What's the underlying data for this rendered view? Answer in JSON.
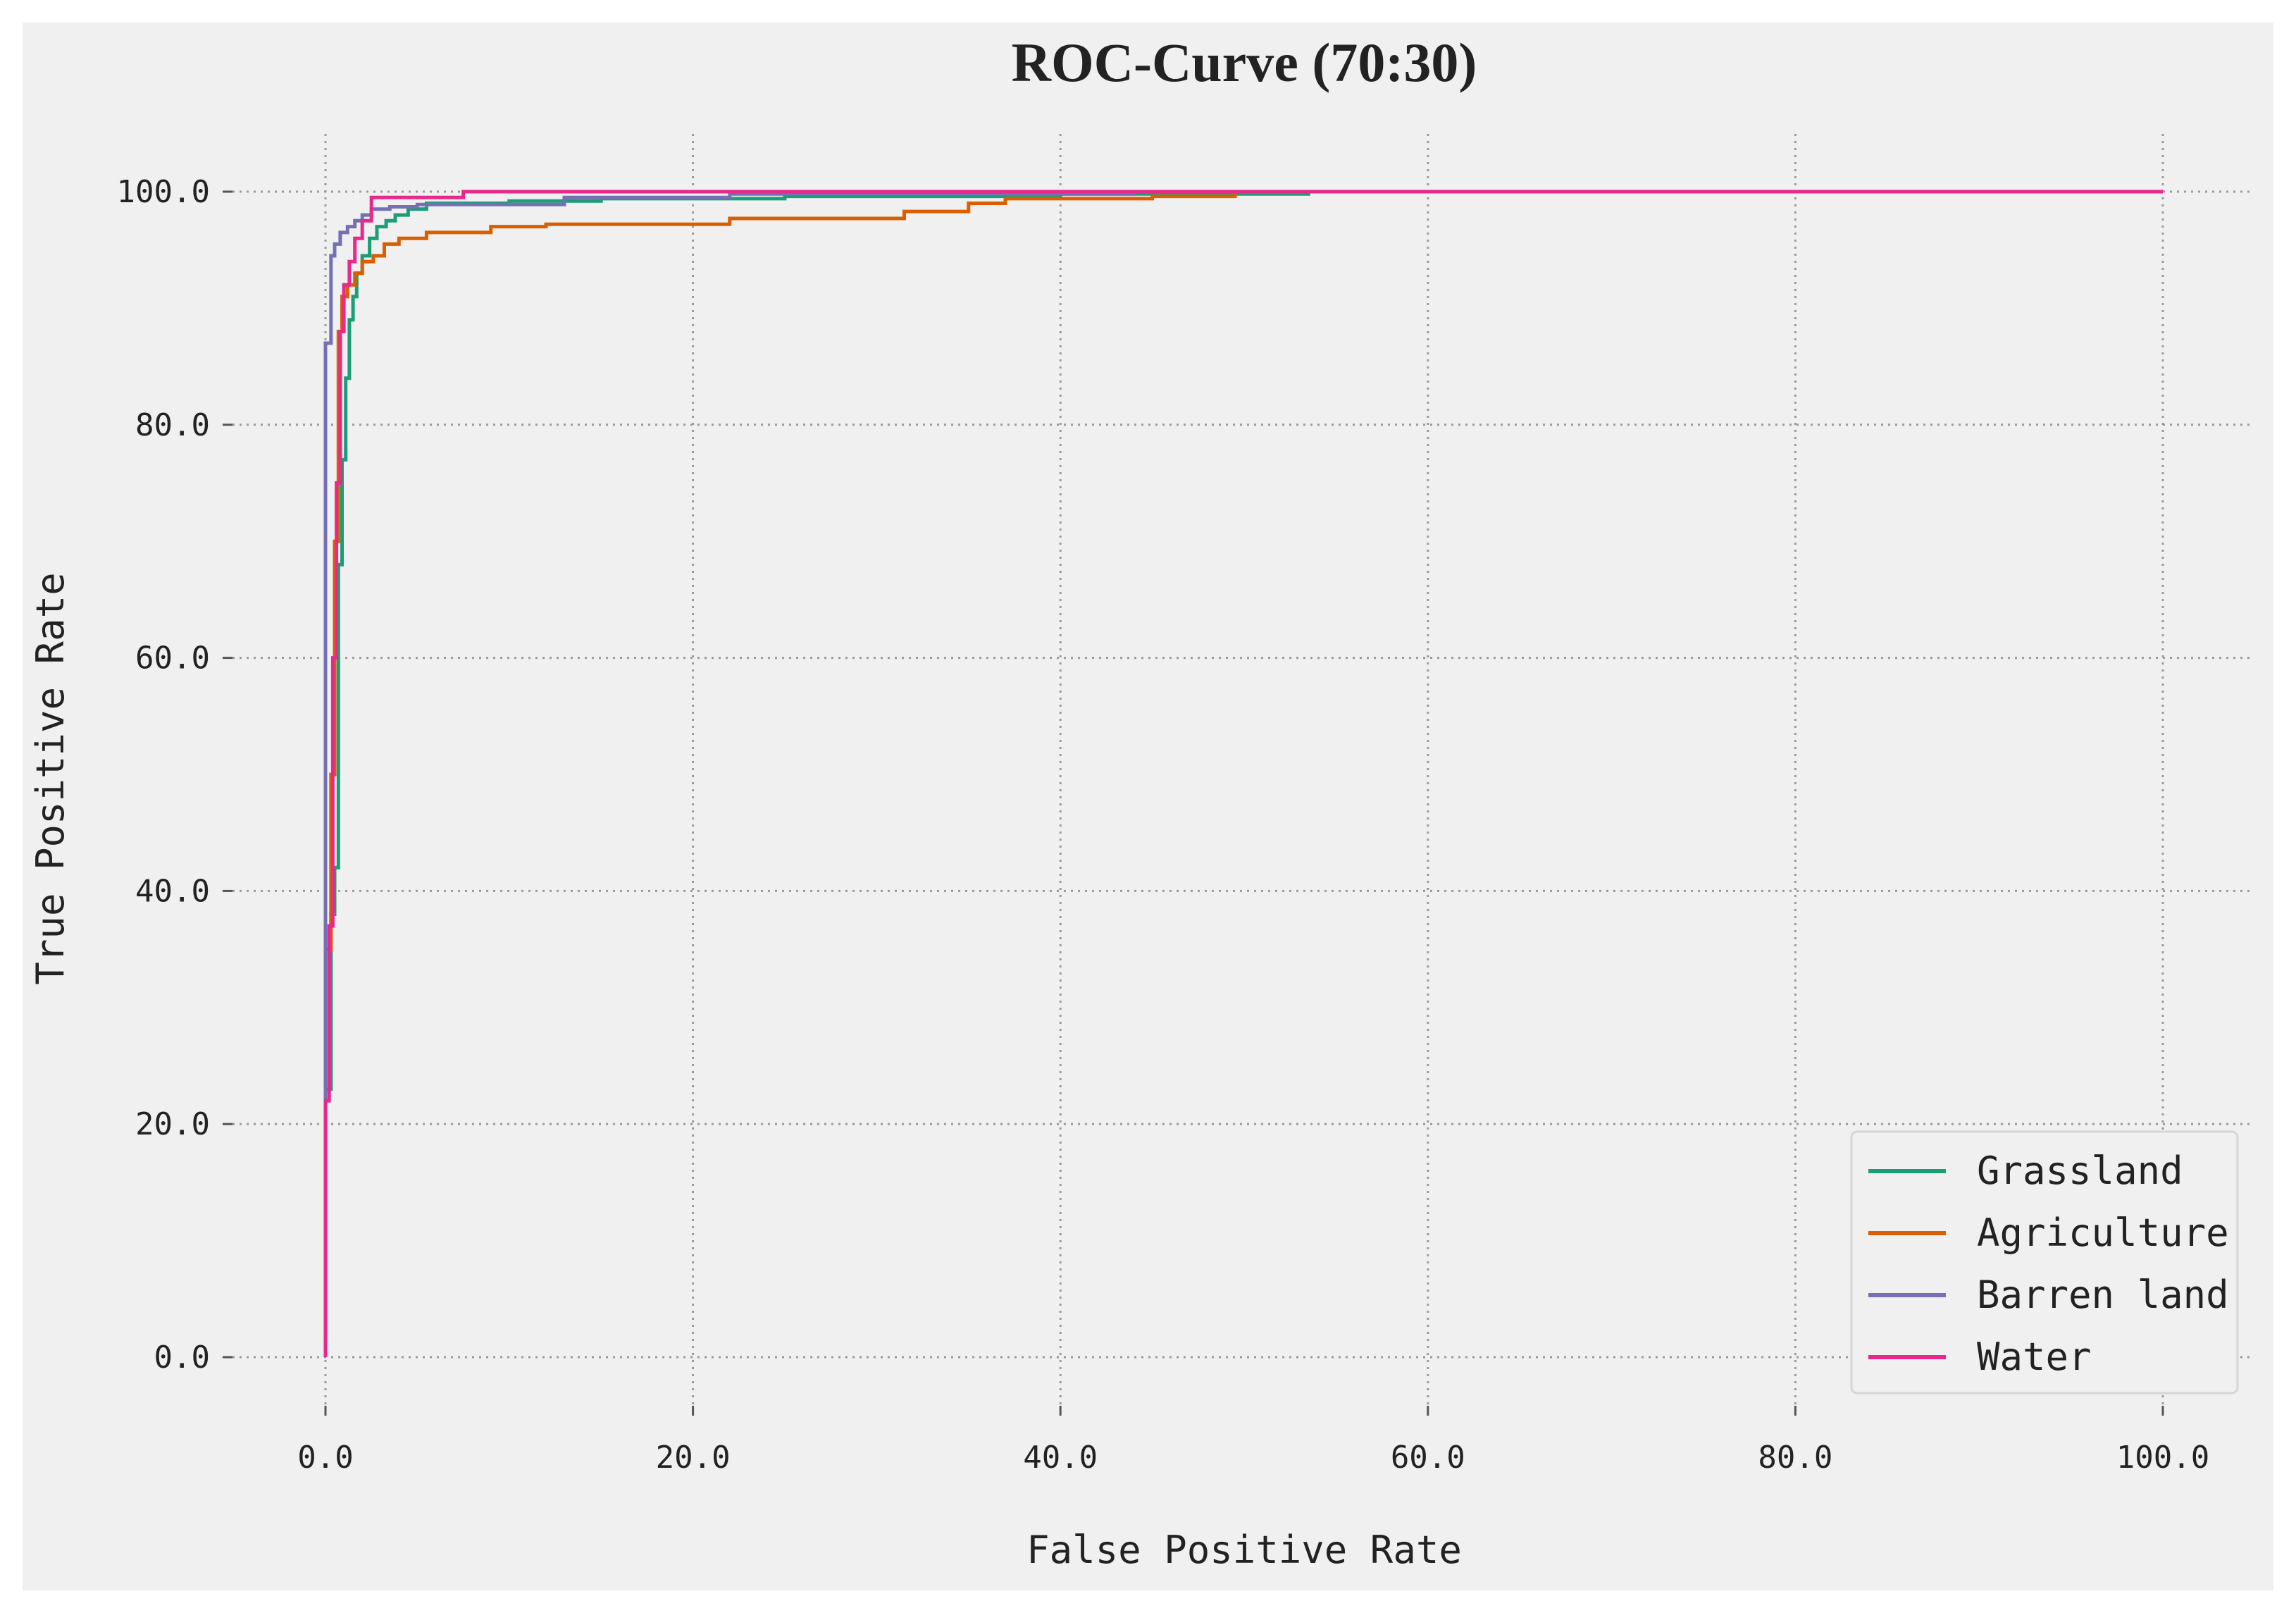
{
  "chart_data": {
    "type": "line",
    "title": "ROC-Curve (70:30)",
    "xlabel": "False Positive Rate",
    "ylabel": "True Positive Rate",
    "xlim": [
      -5,
      102.5
    ],
    "ylim": [
      -5,
      105
    ],
    "xticks": [
      0,
      20,
      40,
      60,
      80,
      100
    ],
    "yticks": [
      0,
      20,
      40,
      60,
      80,
      100
    ],
    "xtick_labels": [
      "0.0",
      "20.0",
      "40.0",
      "60.0",
      "80.0",
      "100.0"
    ],
    "ytick_labels": [
      "0.0",
      "20.0",
      "40.0",
      "60.0",
      "80.0",
      "100.0"
    ],
    "grid": true,
    "legend_position": "bottom-right",
    "colors": {
      "background": "#f0f0f0",
      "grid": "#9a9a9a"
    },
    "series": [
      {
        "name": "Grassland",
        "color": "#1b9e77",
        "x": [
          0,
          0,
          0.3,
          0.3,
          0.5,
          0.5,
          0.7,
          0.7,
          0.9,
          0.9,
          1.1,
          1.1,
          1.3,
          1.3,
          1.5,
          1.5,
          1.7,
          1.7,
          2.0,
          2.0,
          2.4,
          2.4,
          2.8,
          2.8,
          3.3,
          3.3,
          3.8,
          3.8,
          4.5,
          4.5,
          5.5,
          5.5,
          10,
          10,
          15,
          15,
          25,
          25,
          40,
          40,
          53.5,
          53.5,
          100
        ],
        "y": [
          0,
          23,
          23,
          38,
          38,
          42,
          42,
          68,
          68,
          77,
          77,
          84,
          84,
          89,
          89,
          91,
          91,
          93,
          93,
          94.5,
          94.5,
          96,
          96,
          97,
          97,
          97.5,
          97.5,
          98,
          98,
          98.5,
          98.5,
          99,
          99,
          99.2,
          99.2,
          99.4,
          99.4,
          99.6,
          99.6,
          99.8,
          99.8,
          100,
          100
        ]
      },
      {
        "name": "Agriculture",
        "color": "#d95f02",
        "x": [
          0,
          0,
          0.3,
          0.3,
          0.5,
          0.5,
          0.7,
          0.7,
          0.9,
          0.9,
          1.2,
          1.2,
          1.6,
          1.6,
          2.0,
          2.0,
          2.6,
          2.6,
          3.2,
          3.2,
          4.0,
          4.0,
          5.5,
          5.5,
          9.0,
          9.0,
          12,
          12,
          22,
          22,
          31.5,
          31.5,
          35,
          35,
          37,
          37,
          45,
          45,
          49.5,
          49.5,
          100
        ],
        "y": [
          0,
          35,
          35,
          50,
          50,
          70,
          70,
          88,
          88,
          91,
          91,
          92,
          92,
          93,
          93,
          94,
          94,
          94.5,
          94.5,
          95.5,
          95.5,
          96,
          96,
          96.5,
          96.5,
          97,
          97,
          97.2,
          97.2,
          97.7,
          97.7,
          98.3,
          98.3,
          99,
          99,
          99.4,
          99.4,
          99.6,
          99.6,
          100,
          100
        ]
      },
      {
        "name": "Barren land",
        "color": "#7570b3",
        "x": [
          0,
          0,
          0.3,
          0.3,
          0.5,
          0.5,
          0.8,
          0.8,
          1.2,
          1.2,
          1.6,
          1.6,
          2.0,
          2.0,
          2.5,
          2.5,
          3.5,
          3.5,
          5.0,
          5.0,
          13,
          13,
          22,
          22,
          44,
          44,
          100
        ],
        "y": [
          0,
          87,
          87,
          94.5,
          94.5,
          95.5,
          95.5,
          96.5,
          96.5,
          97,
          97,
          97.5,
          97.5,
          98,
          98,
          98.5,
          98.5,
          98.7,
          98.7,
          98.9,
          98.9,
          99.5,
          99.5,
          99.8,
          99.8,
          100,
          100
        ]
      },
      {
        "name": "Water",
        "color": "#e7298a",
        "x": [
          0,
          0,
          0.2,
          0.2,
          0.4,
          0.4,
          0.6,
          0.6,
          0.8,
          0.8,
          1.0,
          1.0,
          1.3,
          1.3,
          1.6,
          1.6,
          2.0,
          2.0,
          2.5,
          2.5,
          7.5,
          7.5,
          100
        ],
        "y": [
          0,
          22,
          22,
          37,
          37,
          60,
          60,
          75,
          75,
          88,
          88,
          92,
          92,
          94,
          94,
          96,
          96,
          97.5,
          97.5,
          99.5,
          99.5,
          100,
          100
        ]
      }
    ]
  }
}
